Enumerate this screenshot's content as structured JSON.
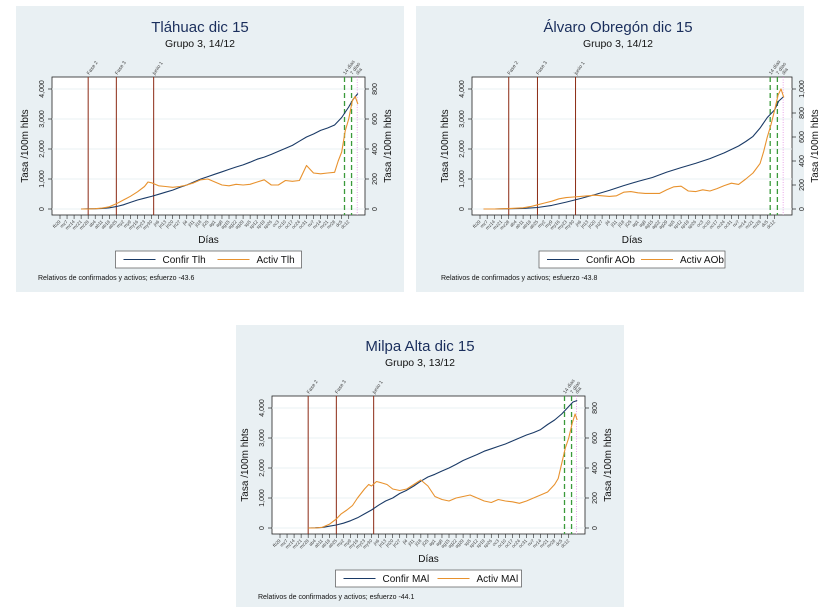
{
  "colors": {
    "confirmed": "#1a3a66",
    "active": "#e8922e",
    "event_line": "#8b2a14",
    "recent_line": "#3a9a3a",
    "today_line": "#e07ee0",
    "panel_bg": "#e9f0f3",
    "grid": "#eaf0f3"
  },
  "chart_data": [
    {
      "type": "line",
      "title": "Tláhuac dic 15",
      "subtitle": "Grupo 3,  14/12",
      "xlabel": "Días",
      "ylabel_left": "Tasa /100m hbts",
      "ylabel_right": "Tasa /100m hbts",
      "ylim_left": [
        0,
        4000
      ],
      "yticks_left": [
        "0",
        "1,000",
        "2,000",
        "3,000",
        "4,000"
      ],
      "ylim_right": [
        0,
        800
      ],
      "yticks_right": [
        "0",
        "200",
        "400",
        "600",
        "800"
      ],
      "grid": true,
      "legend": [
        "Confir Tlh",
        "Activ Tlh"
      ],
      "legend_position": "bottom",
      "note": "Relativos de confirmados y activos; esfuerzo -43.6",
      "x_ticks": [
        "fb29",
        "mz7",
        "mz14",
        "mz21",
        "mz28",
        "ab4",
        "ab11",
        "ab18",
        "ab25",
        "my2",
        "my9",
        "my16",
        "my23",
        "my30",
        "jn6",
        "jn13",
        "jn20",
        "jn27",
        "jl4",
        "jl11",
        "jl18",
        "jl25",
        "ag1",
        "ag8",
        "ag15",
        "ag22",
        "ag29",
        "sp5",
        "sp12",
        "sp19",
        "sp26",
        "oc3",
        "oc10",
        "oc17",
        "oc24",
        "oc31",
        "nv7",
        "nv14",
        "nv21",
        "nv28",
        "dc5",
        "dc12"
      ],
      "event_lines": [
        {
          "label": "Fase 2",
          "x": 4
        },
        {
          "label": "Fase 3",
          "x": 8
        },
        {
          "label": "junio 1",
          "x": 13.3
        }
      ],
      "recent_lines": [
        {
          "label": "14 días",
          "x": 40.4
        },
        {
          "label": "7 días",
          "x": 41.4
        }
      ],
      "today_line": {
        "label": "día",
        "x": 42.2
      },
      "series": [
        {
          "name": "Confir Tlh",
          "axis": "left",
          "x": [
            3,
            4,
            5,
            6,
            7,
            8,
            9,
            10,
            11,
            12,
            13,
            14,
            15,
            16,
            17,
            18,
            19,
            20,
            21,
            22,
            23,
            24,
            25,
            26,
            27,
            28,
            29,
            30,
            31,
            32,
            33,
            34,
            35,
            36,
            37,
            38,
            39,
            40,
            41,
            41.6,
            42.3
          ],
          "values": [
            0,
            5,
            10,
            20,
            40,
            80,
            140,
            220,
            300,
            360,
            420,
            490,
            560,
            630,
            720,
            800,
            900,
            1000,
            1080,
            1160,
            1240,
            1320,
            1400,
            1470,
            1560,
            1660,
            1730,
            1820,
            1920,
            2020,
            2120,
            2260,
            2400,
            2500,
            2620,
            2700,
            2800,
            3050,
            3400,
            3650,
            3850
          ]
        },
        {
          "name": "Activ Tlh",
          "axis": "right",
          "x": [
            3,
            4,
            5,
            6,
            7,
            8,
            9,
            10,
            11,
            12,
            12.5,
            13,
            14,
            15,
            16,
            17,
            18,
            19,
            20,
            21,
            22,
            23,
            24,
            25,
            26,
            27,
            28,
            29,
            30,
            31,
            32,
            33,
            34,
            35,
            36,
            37,
            38,
            39,
            39.5,
            40,
            40.5,
            41,
            41.5,
            41.9,
            42.3
          ],
          "values": [
            0,
            0,
            2,
            6,
            15,
            35,
            60,
            85,
            115,
            150,
            180,
            175,
            155,
            150,
            145,
            150,
            160,
            175,
            195,
            200,
            180,
            160,
            155,
            165,
            160,
            165,
            180,
            195,
            160,
            160,
            190,
            185,
            190,
            290,
            240,
            235,
            240,
            245,
            320,
            380,
            520,
            600,
            720,
            750,
            700
          ]
        }
      ]
    },
    {
      "type": "line",
      "title": "Álvaro Obregón dic 15",
      "subtitle": "Grupo 3,  14/12",
      "xlabel": "Días",
      "ylabel_left": "Tasa /100m hbts",
      "ylabel_right": "Tasa /100m hbts",
      "ylim_left": [
        0,
        4000
      ],
      "yticks_left": [
        "0",
        "1,000",
        "2,000",
        "3,000",
        "4,000"
      ],
      "ylim_right": [
        0,
        1000
      ],
      "yticks_right": [
        "0",
        "200",
        "400",
        "600",
        "800",
        "1,000"
      ],
      "grid": true,
      "legend": [
        "Confir AOb",
        "Activ AOb"
      ],
      "legend_position": "bottom",
      "note": "Relativos de confirmados y activos; esfuerzo -43.8",
      "x_ticks": [
        "fb29",
        "mz7",
        "mz14",
        "mz21",
        "mz28",
        "ab4",
        "ab11",
        "ab18",
        "ab25",
        "my2",
        "my9",
        "my16",
        "my23",
        "my30",
        "jn6",
        "jn13",
        "jn20",
        "jn27",
        "jl4",
        "jl11",
        "jl18",
        "jl25",
        "ag1",
        "ag8",
        "ag15",
        "ag22",
        "ag29",
        "sp5",
        "sp12",
        "sp19",
        "sp26",
        "oc3",
        "oc10",
        "oc17",
        "oc24",
        "oc31",
        "nv7",
        "nv14",
        "nv21",
        "nv28",
        "dc5",
        "dc12"
      ],
      "event_lines": [
        {
          "label": "Fase 2",
          "x": 4
        },
        {
          "label": "Fase 3",
          "x": 8
        },
        {
          "label": "junio 1",
          "x": 13.3
        }
      ],
      "recent_lines": [
        {
          "label": "14 días",
          "x": 40.4
        },
        {
          "label": "7 días",
          "x": 41.4
        }
      ],
      "today_line": {
        "label": "día",
        "x": 42.2
      },
      "series": [
        {
          "name": "Confir AOb",
          "axis": "left",
          "x": [
            0.5,
            2,
            4,
            6,
            8,
            10,
            12,
            14,
            16,
            18,
            20,
            22,
            24,
            26,
            28,
            30,
            32,
            34,
            36,
            37,
            38,
            39,
            40,
            41,
            41.6,
            42.3
          ],
          "values": [
            0,
            0,
            10,
            20,
            50,
            120,
            230,
            350,
            480,
            620,
            780,
            920,
            1050,
            1230,
            1380,
            1520,
            1680,
            1870,
            2100,
            2250,
            2420,
            2700,
            3050,
            3300,
            3600,
            3750
          ]
        },
        {
          "name": "Activ AOb",
          "axis": "right",
          "x": [
            0.5,
            2,
            4,
            6,
            7,
            8,
            9,
            10,
            11,
            12,
            13,
            14,
            15,
            16,
            17,
            18,
            19,
            20,
            21,
            22,
            23,
            24,
            25,
            26,
            27,
            28,
            29,
            30,
            31,
            32,
            33,
            34,
            35,
            36,
            37,
            38,
            39,
            39.5,
            40,
            40.5,
            41,
            41.5,
            41.9,
            42.3
          ],
          "values": [
            0,
            0,
            3,
            10,
            20,
            35,
            50,
            65,
            85,
            95,
            100,
            105,
            110,
            115,
            110,
            105,
            110,
            140,
            145,
            135,
            130,
            130,
            130,
            160,
            185,
            190,
            150,
            145,
            160,
            150,
            170,
            195,
            215,
            205,
            250,
            300,
            380,
            480,
            600,
            700,
            820,
            950,
            1000,
            930
          ]
        }
      ]
    },
    {
      "type": "line",
      "title": "Milpa Alta dic 15",
      "subtitle": "Grupo 3,  13/12",
      "xlabel": "Días",
      "ylabel_left": "Tasa /100m hbts",
      "ylabel_right": "Tasa /100m hbts",
      "ylim_left": [
        0,
        4000
      ],
      "yticks_left": [
        "0",
        "1,000",
        "2,000",
        "3,000",
        "4,000"
      ],
      "ylim_right": [
        0,
        800
      ],
      "yticks_right": [
        "0",
        "200",
        "400",
        "600",
        "800"
      ],
      "grid": true,
      "legend": [
        "Confir MAl",
        "Activ MAl"
      ],
      "legend_position": "bottom",
      "note": "Relativos de confirmados y activos; esfuerzo -44.1",
      "x_ticks": [
        "fb29",
        "mz7",
        "mz14",
        "mz21",
        "mz28",
        "ab4",
        "ab11",
        "ab18",
        "ab25",
        "my2",
        "my9",
        "my16",
        "my23",
        "my30",
        "jn6",
        "jn13",
        "jn20",
        "jn27",
        "jl4",
        "jl11",
        "jl18",
        "jl25",
        "ag1",
        "ag8",
        "ag15",
        "ag22",
        "ag29",
        "sp5",
        "sp12",
        "sp19",
        "sp26",
        "oc3",
        "oc10",
        "oc17",
        "oc24",
        "oc31",
        "nv7",
        "nv14",
        "nv21",
        "nv28",
        "dc5",
        "dc12"
      ],
      "event_lines": [
        {
          "label": "Fase 2",
          "x": 4
        },
        {
          "label": "Fase 3",
          "x": 8
        },
        {
          "label": "junio 1",
          "x": 13.3
        }
      ],
      "recent_lines": [
        {
          "label": "14 días",
          "x": 40.4
        },
        {
          "label": "7 días",
          "x": 41.4
        }
      ],
      "today_line": {
        "label": "día",
        "x": 42.1
      },
      "series": [
        {
          "name": "Confir MAl",
          "axis": "left",
          "x": [
            4,
            5,
            6,
            7,
            8,
            9,
            10,
            11,
            12,
            13,
            14,
            15,
            16,
            17,
            18,
            19,
            20,
            21,
            22,
            23,
            24,
            25,
            26,
            27,
            28,
            29,
            30,
            31,
            32,
            33,
            34,
            35,
            36,
            37,
            38,
            39,
            40,
            41,
            41.6,
            42.2
          ],
          "values": [
            0,
            5,
            20,
            60,
            100,
            160,
            240,
            340,
            470,
            600,
            760,
            900,
            1000,
            1150,
            1260,
            1400,
            1560,
            1700,
            1790,
            1900,
            2000,
            2120,
            2250,
            2350,
            2450,
            2560,
            2640,
            2720,
            2800,
            2900,
            3000,
            3100,
            3180,
            3280,
            3450,
            3600,
            3800,
            4050,
            4200,
            4250
          ]
        },
        {
          "name": "Activ MAl",
          "axis": "right",
          "x": [
            4,
            5,
            6,
            7,
            8,
            8.7,
            9.5,
            10.3,
            11,
            12,
            12.6,
            13,
            13.7,
            14.5,
            15.2,
            16,
            17,
            18,
            19,
            20,
            21,
            22,
            23,
            24,
            25,
            26,
            27,
            28,
            29,
            30,
            31,
            32,
            33,
            34,
            35,
            36,
            37,
            38,
            39,
            39.5,
            40,
            40.5,
            41,
            41.5,
            41.9,
            42.2
          ],
          "values": [
            0,
            0,
            5,
            25,
            60,
            95,
            120,
            150,
            200,
            260,
            290,
            280,
            310,
            300,
            290,
            260,
            250,
            260,
            290,
            320,
            280,
            210,
            190,
            180,
            200,
            210,
            220,
            200,
            180,
            170,
            190,
            180,
            175,
            165,
            180,
            200,
            220,
            240,
            290,
            330,
            430,
            530,
            600,
            700,
            760,
            720
          ]
        }
      ]
    }
  ]
}
